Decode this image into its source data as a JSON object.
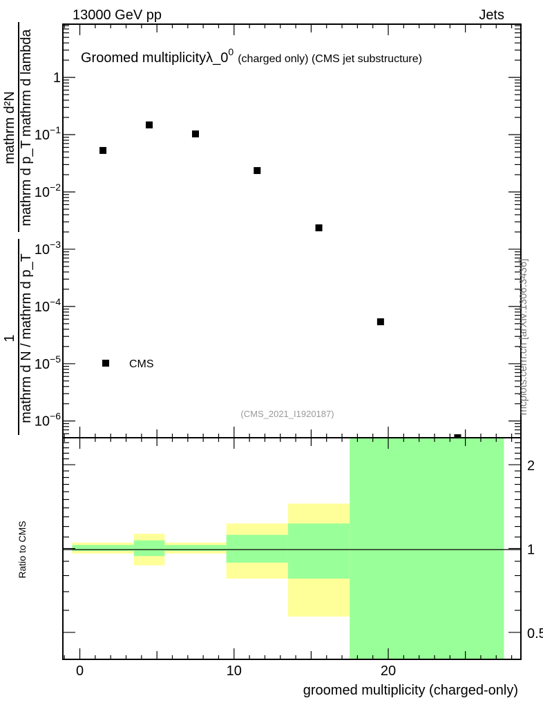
{
  "header": {
    "left": "13000 GeV pp",
    "right": "Jets"
  },
  "side_label": "mcplots.cern.ch [arXiv:1306.3436]",
  "analysis_id": "(CMS_2021_I1920187)",
  "colors": {
    "band_outer": "#ffff99",
    "band_inner": "#99ff99",
    "marker": "#000000"
  },
  "chart_data": [
    {
      "type": "scatter",
      "title": "Groomed multiplicityλ_0",
      "title_sup": "0",
      "subtitle": "(charged only) (CMS jet substructure)",
      "ylabel_top": {
        "num": "mathrm d²N",
        "den": "mathrm d p_T mathrm d lambda"
      },
      "ylabel_bottom": {
        "num": "1",
        "den": "mathrm d N / mathrm d p_T"
      },
      "yscale": "log",
      "xlim": [
        -1.1,
        28.6
      ],
      "ylim": [
        5.1e-07,
        8.5
      ],
      "yticks": [
        {
          "v": 1,
          "label": "1",
          "exp": ""
        },
        {
          "v": 0.1,
          "label": "10",
          "exp": "−1"
        },
        {
          "v": 0.01,
          "label": "10",
          "exp": "−2"
        },
        {
          "v": 0.001,
          "label": "10",
          "exp": "−3"
        },
        {
          "v": 0.0001,
          "label": "10",
          "exp": "−4"
        },
        {
          "v": 1e-05,
          "label": "10",
          "exp": "−5"
        },
        {
          "v": 1e-06,
          "label": "10",
          "exp": "−6"
        }
      ],
      "legend": {
        "entries": [
          "CMS"
        ],
        "placement": "bottom-left"
      },
      "series": [
        {
          "name": "CMS",
          "x": [
            1.5,
            4.5,
            7.5,
            11.5,
            15.5,
            19.5,
            24.5
          ],
          "y": [
            0.053,
            0.148,
            0.103,
            0.0236,
            0.00236,
            5.4e-05,
            5.1e-07
          ]
        }
      ]
    },
    {
      "type": "area",
      "ylabel": "Ratio to CMS",
      "xlabel": "groomed multiplicity (charged-only)",
      "yscale": "log",
      "xlim": [
        -1.1,
        28.6
      ],
      "ylim": [
        0.4,
        2.5
      ],
      "xticks": [
        {
          "v": 0,
          "label": "0"
        },
        {
          "v": 10,
          "label": "10"
        },
        {
          "v": 20,
          "label": "20"
        }
      ],
      "yticks": [
        {
          "v": 0.5,
          "label": "0.5"
        },
        {
          "v": 1,
          "label": "1"
        },
        {
          "v": 2,
          "label": "2"
        }
      ],
      "reference_line": 1,
      "bins": [
        {
          "x0": -0.5,
          "x1": 3.5,
          "outer": [
            0.96,
            1.05
          ],
          "inner": [
            0.98,
            1.03
          ]
        },
        {
          "x0": 3.5,
          "x1": 5.5,
          "outer": [
            0.87,
            1.13
          ],
          "inner": [
            0.94,
            1.07
          ]
        },
        {
          "x0": 5.5,
          "x1": 9.5,
          "outer": [
            0.96,
            1.05
          ],
          "inner": [
            0.98,
            1.03
          ]
        },
        {
          "x0": 9.5,
          "x1": 13.5,
          "outer": [
            0.78,
            1.23
          ],
          "inner": [
            0.89,
            1.12
          ]
        },
        {
          "x0": 13.5,
          "x1": 17.5,
          "outer": [
            0.57,
            1.45
          ],
          "inner": [
            0.78,
            1.23
          ]
        },
        {
          "x0": 17.5,
          "x1": 27.5,
          "outer": [
            0.4,
            2.5
          ],
          "inner": [
            0.4,
            2.5
          ]
        }
      ]
    }
  ]
}
